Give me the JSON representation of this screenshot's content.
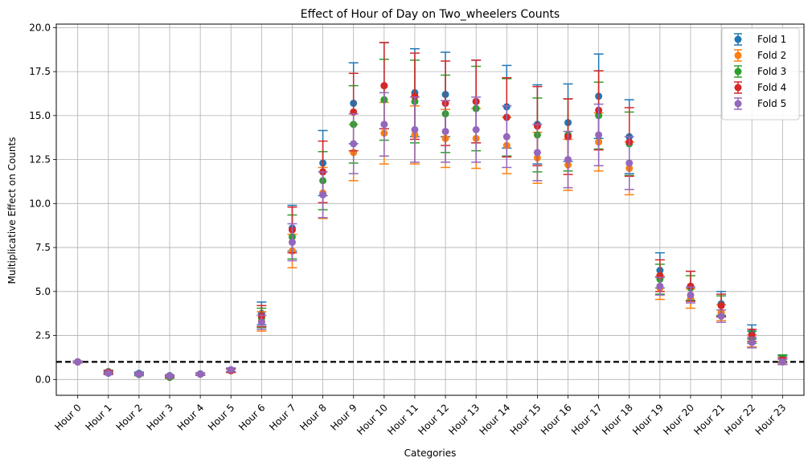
{
  "chart_data": {
    "type": "scatter",
    "title": "Effect of Hour of Day on Two_wheelers Counts",
    "xlabel": "Categories",
    "ylabel": "Multiplicative Effect on Counts",
    "categories": [
      "Hour 0",
      "Hour 1",
      "Hour 2",
      "Hour 3",
      "Hour 4",
      "Hour 5",
      "Hour 6",
      "Hour 7",
      "Hour 8",
      "Hour 9",
      "Hour 10",
      "Hour 11",
      "Hour 12",
      "Hour 13",
      "Hour 14",
      "Hour 15",
      "Hour 16",
      "Hour 17",
      "Hour 18",
      "Hour 19",
      "Hour 20",
      "Hour 21",
      "Hour 22",
      "Hour 23"
    ],
    "ylim": [
      -0.9,
      20.2
    ],
    "yticks": [
      "0.0",
      "2.5",
      "5.0",
      "7.5",
      "10.0",
      "12.5",
      "15.0",
      "17.5",
      "20.0"
    ],
    "reference_line": 1.0,
    "grid": true,
    "legend_position": "top-right",
    "series": [
      {
        "name": "Fold 1",
        "color": "#1f77b4",
        "values": [
          1.0,
          0.45,
          0.35,
          0.22,
          0.32,
          0.55,
          3.75,
          8.6,
          12.3,
          15.7,
          16.7,
          16.3,
          16.2,
          15.8,
          15.5,
          14.5,
          14.6,
          16.1,
          13.8,
          6.2,
          5.3,
          4.3,
          2.7,
          1.1
        ],
        "error": [
          0.05,
          0.08,
          0.07,
          0.05,
          0.06,
          0.1,
          0.65,
          1.3,
          1.85,
          2.3,
          2.45,
          2.5,
          2.4,
          2.35,
          2.35,
          2.25,
          2.2,
          2.4,
          2.1,
          1.0,
          0.85,
          0.7,
          0.4,
          0.25
        ]
      },
      {
        "name": "Fold 2",
        "color": "#ff7f0e",
        "values": [
          1.0,
          0.42,
          0.3,
          0.2,
          0.3,
          0.5,
          3.3,
          7.3,
          10.6,
          12.9,
          14.0,
          13.9,
          13.7,
          13.7,
          13.3,
          12.6,
          12.2,
          13.5,
          12.0,
          5.2,
          4.6,
          3.8,
          2.2,
          1.0
        ],
        "error": [
          0.05,
          0.08,
          0.07,
          0.05,
          0.06,
          0.1,
          0.55,
          0.95,
          1.45,
          1.6,
          1.75,
          1.65,
          1.65,
          1.7,
          1.6,
          1.45,
          1.45,
          1.65,
          1.5,
          0.65,
          0.55,
          0.45,
          0.35,
          0.15
        ]
      },
      {
        "name": "Fold 3",
        "color": "#2ca02c",
        "values": [
          1.0,
          0.4,
          0.28,
          0.12,
          0.3,
          0.5,
          3.5,
          8.1,
          11.3,
          14.5,
          15.9,
          15.8,
          15.1,
          15.4,
          14.9,
          13.9,
          13.9,
          15.0,
          13.4,
          5.7,
          5.2,
          4.2,
          2.4,
          1.2
        ],
        "error": [
          0.05,
          0.08,
          0.07,
          0.05,
          0.06,
          0.1,
          0.55,
          1.25,
          1.65,
          2.2,
          2.3,
          2.35,
          2.2,
          2.4,
          2.2,
          2.1,
          2.05,
          1.9,
          1.8,
          0.85,
          0.7,
          0.55,
          0.35,
          0.2
        ]
      },
      {
        "name": "Fold 4",
        "color": "#d62728",
        "values": [
          1.0,
          0.4,
          0.3,
          0.18,
          0.3,
          0.5,
          3.6,
          8.5,
          11.8,
          15.2,
          16.7,
          16.1,
          15.7,
          15.8,
          14.9,
          14.4,
          13.8,
          15.3,
          13.5,
          5.9,
          5.3,
          4.2,
          2.5,
          1.1
        ],
        "error": [
          0.05,
          0.08,
          0.07,
          0.05,
          0.06,
          0.1,
          0.6,
          1.3,
          1.75,
          2.2,
          2.45,
          2.45,
          2.4,
          2.35,
          2.25,
          2.25,
          2.15,
          2.25,
          1.95,
          0.9,
          0.85,
          0.65,
          0.35,
          0.15
        ]
      },
      {
        "name": "Fold 5",
        "color": "#9467bd",
        "values": [
          1.0,
          0.35,
          0.3,
          0.2,
          0.3,
          0.55,
          3.25,
          7.8,
          10.5,
          13.4,
          14.5,
          14.2,
          14.1,
          14.2,
          13.8,
          12.9,
          12.5,
          13.9,
          12.3,
          5.3,
          4.8,
          3.6,
          2.1,
          1.0
        ],
        "error": [
          0.05,
          0.08,
          0.07,
          0.05,
          0.06,
          0.1,
          0.4,
          1.05,
          1.3,
          1.7,
          1.8,
          1.85,
          1.75,
          1.85,
          1.75,
          1.6,
          1.6,
          1.75,
          1.5,
          0.5,
          0.45,
          0.35,
          0.3,
          0.15
        ]
      }
    ]
  }
}
